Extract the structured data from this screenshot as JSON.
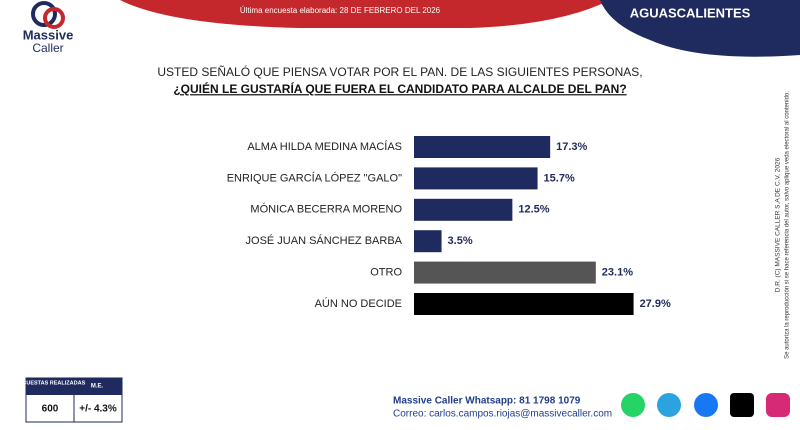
{
  "header": {
    "brand_line1": "Massive",
    "brand_line2": "Caller",
    "last_survey": "Última encuesta elaborada: 28 DE FEBRERO DEL 2026",
    "region": "AGUASCALIENTES"
  },
  "chart_data": {
    "type": "bar",
    "orientation": "horizontal",
    "title": "USTED SEÑALÓ QUE PIENSA VOTAR POR EL PAN. DE LAS SIGUIENTES PERSONAS,",
    "subtitle": "¿QUIÉN LE GUSTARÍA QUE FUERA EL CANDIDATO PARA ALCALDE DEL PAN?",
    "categories": [
      "ALMA HILDA MEDINA MACÍAS",
      "ENRIQUE GARCÍA LÓPEZ \"GALO\"",
      "MÓNICA BECERRA MORENO",
      "JOSÉ JUAN SÁNCHEZ BARBA",
      "OTRO",
      "AÚN NO DECIDE"
    ],
    "values": [
      17.3,
      15.7,
      12.5,
      3.5,
      23.1,
      27.9
    ],
    "value_labels": [
      "17.3%",
      "15.7%",
      "12.5%",
      "3.5%",
      "23.1%",
      "27.9%"
    ],
    "colors": [
      "#1f2a5e",
      "#1f2a5e",
      "#1f2a5e",
      "#1f2a5e",
      "#555555",
      "#000000"
    ]
  },
  "side_note": {
    "copyright": "D.R. (C) MASSIVE CALLER S.A DE C.V, 2026",
    "reproduction": "Se autoriza la reproducción si se hace referencia del autor, salvo aplique veda electoral al contenido."
  },
  "survey_table": {
    "headers": [
      "ENCUESTAS REALIZADAS",
      "M.E."
    ],
    "row": [
      "600",
      "+/- 4.3%"
    ]
  },
  "footer": {
    "whatsapp": "Massive Caller Whatsapp: 81 1798 1079",
    "email": "Correo: carlos.campos.riojas@massivecaller.com"
  }
}
